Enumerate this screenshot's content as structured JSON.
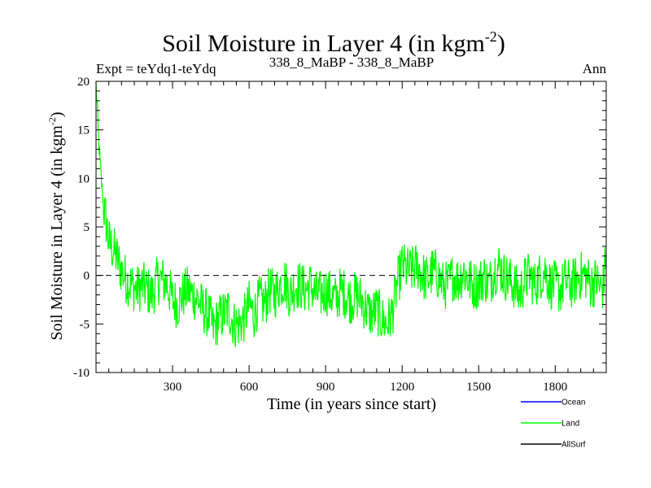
{
  "chart_data": {
    "type": "line",
    "title": "Soil Moisture in Layer 4 (in kgm",
    "title_superscript": "-2",
    "title_end": ")",
    "subtitle_left": "Expt = teYdq1-teYdq",
    "subtitle_center": "338_8_MaBP - 338_8_MaBP",
    "subtitle_right": "Ann",
    "xlabel": "Time (in years since start)",
    "ylabel": "Soil Moisture in Layer 4 (in kgm",
    "ylabel_superscript": "-2",
    "ylabel_end": ")",
    "xlim": [
      0,
      2000
    ],
    "ylim": [
      -10,
      20
    ],
    "x_ticks": [
      300,
      600,
      900,
      1200,
      1500,
      1800
    ],
    "x_tick_labels": [
      "300",
      "600",
      "900",
      "1200",
      "1500",
      "1800"
    ],
    "y_ticks": [
      -10,
      -5,
      0,
      5,
      10,
      15,
      20
    ],
    "y_tick_labels": [
      "-10",
      "-5",
      "0",
      "5",
      "10",
      "15",
      "20"
    ],
    "reference_line": {
      "y": 0,
      "style": "dashed"
    },
    "series": [
      {
        "name": "Land",
        "color": "#00ff00",
        "x": [
          0,
          10,
          20,
          30,
          40,
          50,
          60,
          80,
          100,
          120,
          140,
          160,
          180,
          200,
          220,
          240,
          260,
          280,
          300,
          320,
          340,
          360,
          380,
          400,
          420,
          440,
          460,
          480,
          500,
          520,
          540,
          560,
          580,
          600,
          620,
          640,
          660,
          680,
          700,
          720,
          740,
          760,
          780,
          800,
          820,
          840,
          860,
          880,
          900,
          920,
          940,
          960,
          980,
          1000,
          1020,
          1040,
          1060,
          1080,
          1100,
          1120,
          1140,
          1160,
          1180,
          1200,
          1220,
          1240,
          1260,
          1280,
          1300,
          1320,
          1340,
          1360,
          1380,
          1400,
          1420,
          1440,
          1460,
          1480,
          1500,
          1520,
          1540,
          1560,
          1580,
          1600,
          1620,
          1640,
          1660,
          1680,
          1700,
          1720,
          1740,
          1760,
          1780,
          1800,
          1820,
          1840,
          1860,
          1880,
          1900,
          1920,
          1940,
          1960,
          1980,
          1990,
          2000
        ],
        "values": [
          20,
          14,
          10,
          7,
          5.5,
          3.5,
          3,
          2,
          0.5,
          -0.5,
          -1,
          -1.5,
          -1,
          -1.5,
          -2,
          -0.5,
          -0.5,
          -1,
          -2.5,
          -3,
          -2,
          -1.5,
          -2,
          -2.5,
          -3.5,
          -4,
          -5.5,
          -4.5,
          -4,
          -3.5,
          -5,
          -5,
          -4.5,
          -3,
          -4,
          -2.5,
          -3,
          -1.5,
          -2,
          -1,
          -0.5,
          -2,
          -1,
          -1,
          -1.5,
          -1,
          -2,
          -2,
          -1.5,
          -2,
          -2.5,
          -1.5,
          -2,
          -2.5,
          -2,
          -2.5,
          -3.5,
          -4,
          -3.5,
          -4.5,
          -5,
          -4,
          -1,
          1,
          0.5,
          0.5,
          1,
          0,
          -0.5,
          0.5,
          0,
          -1,
          -1,
          0,
          -0.5,
          0.5,
          -0.5,
          -1,
          -1,
          0,
          -1,
          0.5,
          1,
          0,
          -0.5,
          -1,
          -2,
          -0.5,
          0,
          -1,
          0,
          0.5,
          -1,
          -1,
          -1.5,
          -0.5,
          -1,
          -0.5,
          0,
          0,
          -1,
          -0.5,
          -1.5,
          -1,
          3
        ]
      },
      {
        "name": "Ocean",
        "color": "#0000ff",
        "values": []
      },
      {
        "name": "AllSurf",
        "color": "#000000",
        "values": []
      }
    ],
    "legend": [
      "Ocean",
      "Land",
      "AllSurf"
    ]
  }
}
